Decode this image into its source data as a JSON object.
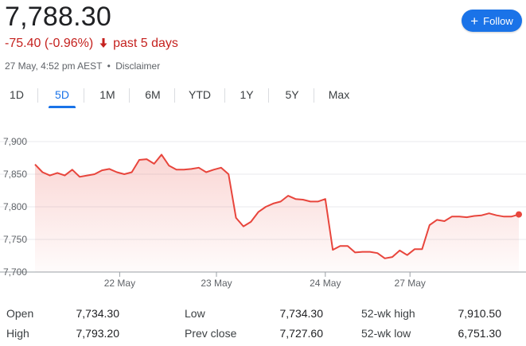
{
  "header": {
    "price": "7,788.30",
    "change": "-75.40 (-0.96%)",
    "change_arrow": "🡓",
    "change_period": "past 5 days",
    "timestamp": "27 May, 4:52 pm AEST",
    "separator": "•",
    "disclaimer": "Disclaimer",
    "follow_label": "Follow",
    "follow_icon": "plus-icon"
  },
  "tabs": [
    {
      "label": "1D",
      "active": false
    },
    {
      "label": "5D",
      "active": true
    },
    {
      "label": "1M",
      "active": false
    },
    {
      "label": "6M",
      "active": false
    },
    {
      "label": "YTD",
      "active": false
    },
    {
      "label": "1Y",
      "active": false
    },
    {
      "label": "5Y",
      "active": false
    },
    {
      "label": "Max",
      "active": false
    }
  ],
  "colors": {
    "line": "#e8453c",
    "negative_text": "#c5221f",
    "accent": "#1a73e8"
  },
  "chart_data": {
    "type": "line",
    "y_ticks": [
      "7,900",
      "7,850",
      "7,800",
      "7,750",
      "7,700"
    ],
    "ylim": [
      7700,
      7900
    ],
    "x_tick_labels": [
      "22 May",
      "23 May",
      "24 May",
      "27 May"
    ],
    "x_tick_positions": [
      14,
      30,
      48,
      62
    ],
    "x_range": [
      0,
      80
    ],
    "values": [
      7865,
      7853,
      7848,
      7852,
      7848,
      7857,
      7846,
      7848,
      7850,
      7856,
      7858,
      7853,
      7850,
      7853,
      7872,
      7873,
      7866,
      7880,
      7863,
      7857,
      7857,
      7858,
      7860,
      7853,
      7857,
      7860,
      7850,
      7783,
      7770,
      7777,
      7792,
      7800,
      7805,
      7808,
      7817,
      7812,
      7811,
      7808,
      7808,
      7812,
      7734,
      7740,
      7740,
      7730,
      7731,
      7731,
      7729,
      7721,
      7723,
      7733,
      7726,
      7735,
      7735,
      7772,
      7780,
      7778,
      7785,
      7785,
      7784,
      7786,
      7787,
      7790,
      7787,
      7785,
      7785,
      7788.3
    ],
    "grid": true
  },
  "stats": [
    {
      "label": "Open",
      "value": "7,734.30"
    },
    {
      "label": "High",
      "value": "7,793.20"
    },
    {
      "label": "Low",
      "value": "7,734.30"
    },
    {
      "label": "Prev close",
      "value": "7,727.60"
    },
    {
      "label": "52-wk high",
      "value": "7,910.50"
    },
    {
      "label": "52-wk low",
      "value": "6,751.30"
    }
  ]
}
